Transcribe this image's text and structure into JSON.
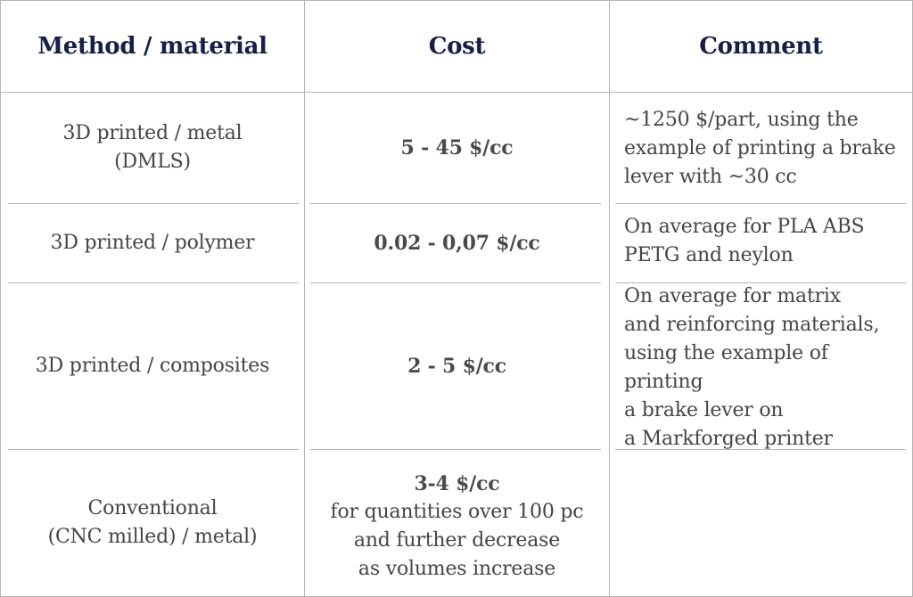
{
  "headers": {
    "method": "Method / material",
    "cost": "Cost",
    "comment": "Comment"
  },
  "rows": [
    {
      "method": "3D printed / metal\n(DMLS)",
      "cost": "5 - 45 $/cc",
      "comment": "~1250 $/part, using the\nexample of printing a brake\nlever with ~30 cc"
    },
    {
      "method": "3D printed / polymer",
      "cost": "0.02 - 0,07 $/cc",
      "comment": "On average for PLA ABS\nPETG and neylon"
    },
    {
      "method": "3D printed / composites",
      "cost": "2 - 5 $/cc",
      "comment": "On average for matrix\nand reinforcing materials,\nusing the example of printing\na brake lever on\na Markforged printer"
    },
    {
      "method": "Conventional\n(CNC milled) / metal)",
      "cost": "3-4 $/cc",
      "cost_note": "for quantities over 100 pc\nand further decrease\nas volumes increase",
      "comment": ""
    }
  ]
}
